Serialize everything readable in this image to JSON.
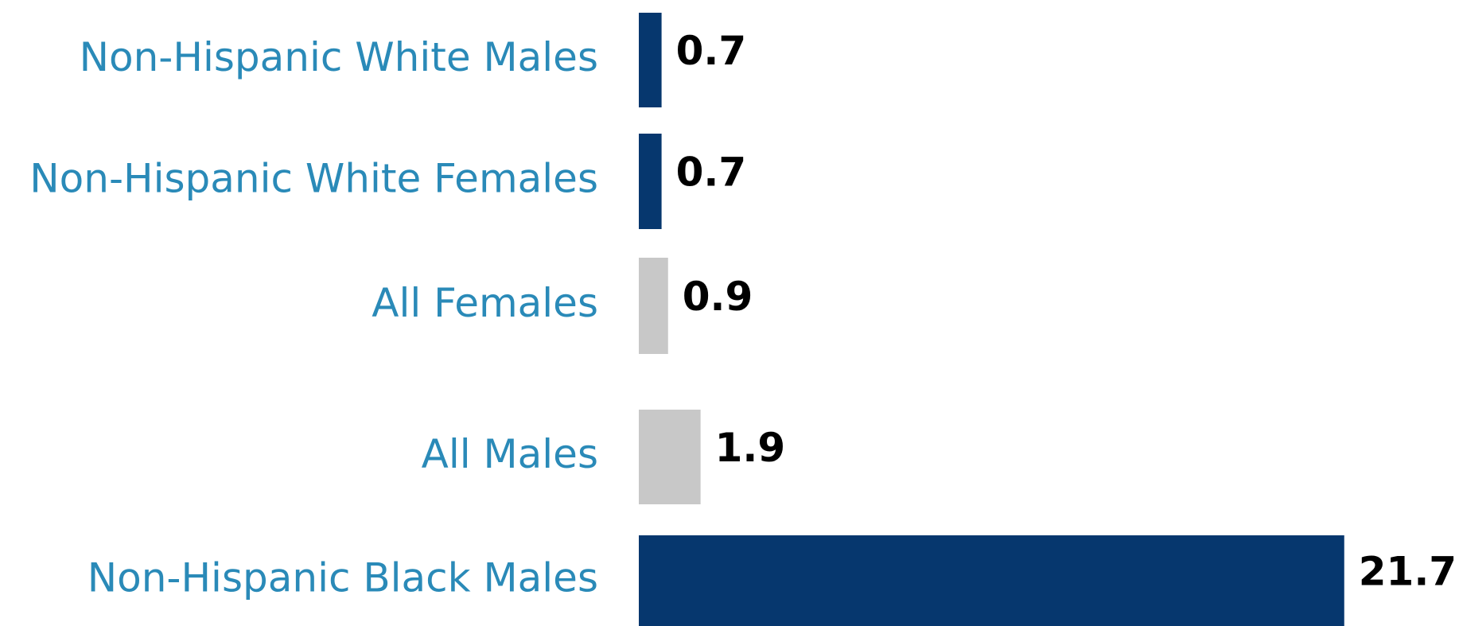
{
  "chart_data": {
    "type": "barh",
    "categories": [
      "Non-Hispanic White Males",
      "Non-Hispanic White Females",
      "All Females",
      "All Males",
      "Non-Hispanic Black Males"
    ],
    "values": [
      0.7,
      0.7,
      0.9,
      1.9,
      21.7
    ],
    "colors": [
      "#06376e",
      "#06376e",
      "#c8c8c8",
      "#c8c8c8",
      "#06376e"
    ],
    "xlim": [
      0,
      22
    ]
  }
}
